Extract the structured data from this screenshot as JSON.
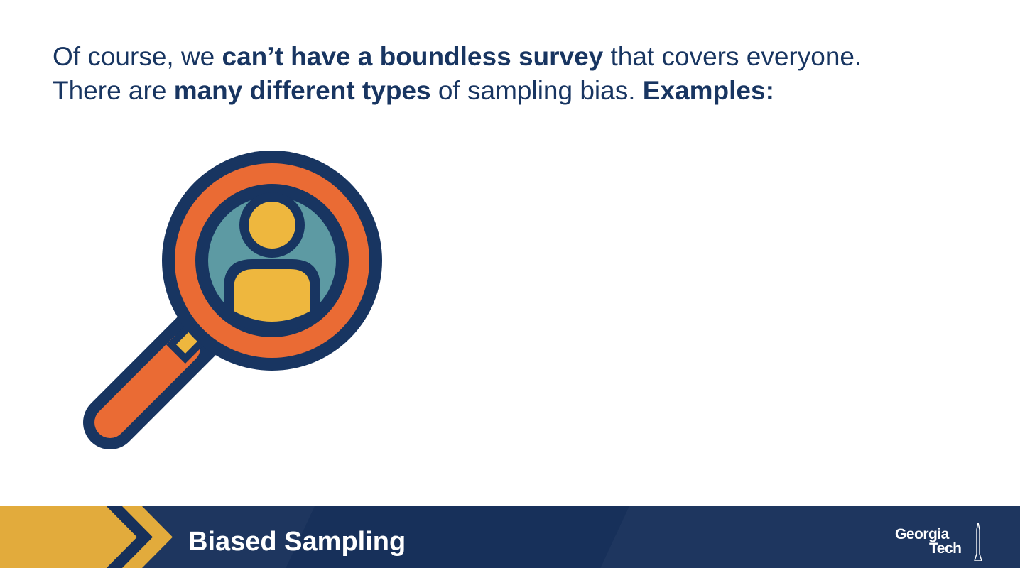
{
  "slide": {
    "heading": {
      "line1": [
        {
          "text": "Of course, we ",
          "bold": false
        },
        {
          "text": "can’t have a boundless survey",
          "bold": true
        },
        {
          "text": " that covers everyone.",
          "bold": false
        }
      ],
      "line2": [
        {
          "text": "There are ",
          "bold": false
        },
        {
          "text": "many different types",
          "bold": true
        },
        {
          "text": " of sampling bias. ",
          "bold": false
        },
        {
          "text": "Examples:",
          "bold": true
        }
      ]
    },
    "illustration": {
      "icon": "magnifying-glass-person-icon"
    }
  },
  "footer": {
    "title": "Biased Sampling",
    "logo_line1": "Georgia",
    "logo_line2": "Tech",
    "icon": "chevron-right-icon"
  },
  "colors": {
    "navy": "#183561",
    "orange": "#ea6b34",
    "teal": "#5d9aa3",
    "gold": "#eeb73e",
    "footer_bg": "#17305a",
    "footer_accent": "#e2ab3c"
  }
}
